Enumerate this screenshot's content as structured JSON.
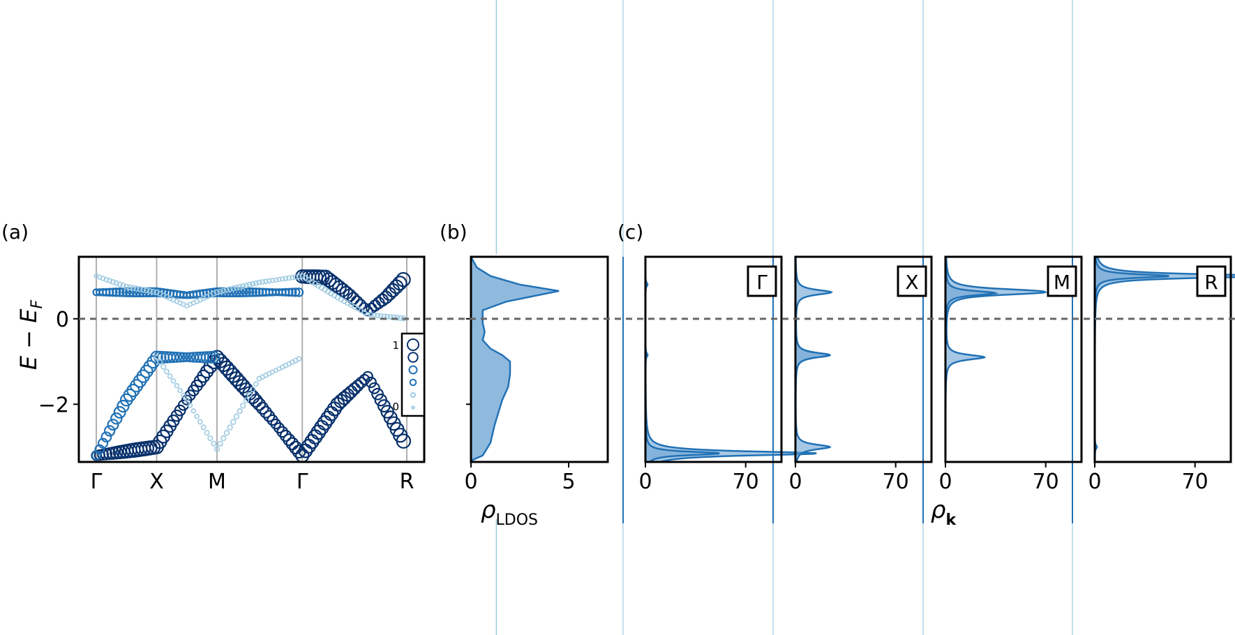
{
  "colors": {
    "dark": "#08306b",
    "mid": "#2171b5",
    "light": "#9ecae1",
    "fill": "#6aa3d3",
    "ef_line": "#666666",
    "kline": "#b0b0b0"
  },
  "panel_labels": {
    "a": "(a)",
    "b": "(b)",
    "c": "(c)"
  },
  "chart_data": [
    {
      "type": "scatter",
      "panel": "(a)",
      "ylabel_main": "E − E",
      "ylabel_sub": "F",
      "ylim": [
        -3.35,
        1.45
      ],
      "yticks": [
        0,
        -2
      ],
      "ytick_labels": [
        "0",
        "−2"
      ],
      "kpoints": [
        {
          "label": "Γ",
          "k": 0.0
        },
        {
          "label": "X",
          "k": 1.0
        },
        {
          "label": "M",
          "k": 2.0
        },
        {
          "label": "Γ",
          "k": 3.414
        },
        {
          "label": "R",
          "k": 5.146
        }
      ],
      "fermi_level": 0,
      "colorbar_labels": [
        "1",
        "0"
      ],
      "bands": [
        {
          "name": "upper-dark",
          "weight": 1.0,
          "points": [
            [
              3.414,
              0.99
            ],
            [
              3.8,
              0.97
            ],
            [
              4.2,
              0.55
            ],
            [
              4.5,
              0.18
            ],
            [
              4.8,
              0.5
            ],
            [
              5.146,
              1.0
            ]
          ]
        },
        {
          "name": "upper-flat",
          "weight": 0.55,
          "points": [
            [
              0.0,
              0.62
            ],
            [
              1.0,
              0.62
            ],
            [
              1.5,
              0.55
            ],
            [
              2.0,
              0.62
            ],
            [
              2.7,
              0.62
            ],
            [
              3.414,
              0.62
            ]
          ]
        },
        {
          "name": "upper-light",
          "weight": 0.2,
          "points": [
            [
              0.0,
              1.0
            ],
            [
              0.5,
              0.75
            ],
            [
              1.0,
              0.62
            ],
            [
              1.5,
              0.3
            ],
            [
              2.0,
              0.62
            ],
            [
              2.7,
              0.85
            ],
            [
              3.414,
              1.0
            ],
            [
              4.0,
              0.5
            ],
            [
              4.5,
              0.1
            ],
            [
              5.146,
              0.0
            ]
          ]
        },
        {
          "name": "lower-dark-1",
          "weight": 1.0,
          "points": [
            [
              0.0,
              -3.2
            ],
            [
              0.5,
              -3.1
            ],
            [
              1.0,
              -3.0
            ],
            [
              1.5,
              -1.9
            ],
            [
              2.0,
              -0.9
            ],
            [
              2.7,
              -2.0
            ],
            [
              3.414,
              -3.2
            ],
            [
              4.0,
              -2.0
            ],
            [
              4.5,
              -1.35
            ],
            [
              5.146,
              -3.0
            ]
          ]
        },
        {
          "name": "lower-dark-2",
          "weight": 0.85,
          "points": [
            [
              0.0,
              -3.2
            ],
            [
              0.5,
              -1.9
            ],
            [
              1.0,
              -0.9
            ],
            [
              1.5,
              -0.9
            ],
            [
              2.0,
              -0.9
            ]
          ]
        },
        {
          "name": "lower-light",
          "weight": 0.2,
          "points": [
            [
              1.0,
              -0.9
            ],
            [
              1.5,
              -1.9
            ],
            [
              2.0,
              -3.05
            ],
            [
              2.7,
              -1.4
            ],
            [
              3.414,
              -0.9
            ]
          ]
        }
      ]
    },
    {
      "type": "area",
      "panel": "(b)",
      "xlabel_main": "ρ",
      "xlabel_sub": "LDOS",
      "xlim": [
        0,
        7
      ],
      "xticks": [
        0,
        5
      ],
      "series": [
        {
          "name": "",
          "points": [
            [
              0,
              -3.35
            ],
            [
              0.1,
              -3.3
            ],
            [
              0.6,
              -3.2
            ],
            [
              1.0,
              -2.9
            ],
            [
              1.2,
              -2.5
            ],
            [
              1.4,
              -2.2
            ],
            [
              1.6,
              -1.9
            ],
            [
              1.9,
              -1.6
            ],
            [
              2.0,
              -1.3
            ],
            [
              2.0,
              -1.0
            ],
            [
              1.6,
              -0.85
            ],
            [
              1.0,
              -0.7
            ],
            [
              0.6,
              -0.5
            ],
            [
              0.7,
              -0.3
            ],
            [
              0.6,
              -0.1
            ],
            [
              0.6,
              0.2
            ],
            [
              1.8,
              0.4
            ],
            [
              4.5,
              0.65
            ],
            [
              2.5,
              0.8
            ],
            [
              1.0,
              1.0
            ],
            [
              0.3,
              1.2
            ],
            [
              0,
              1.45
            ]
          ]
        }
      ],
      "outside_spike": {
        "x": 1.3,
        "y_top": 8.5,
        "y_bottom": -5.9
      }
    },
    {
      "type": "area",
      "panel": "(c)",
      "xlabel_main": "ρ",
      "xlabel_sub": "k",
      "xlim": [
        0,
        95
      ],
      "xticks": [
        0,
        70
      ],
      "subpanels": [
        {
          "label": "Γ",
          "peaks": [
            {
              "e": -3.15,
              "h": 68,
              "w": 0.07
            },
            {
              "e": -3.15,
              "h": 52,
              "w": 0.05
            },
            {
              "e": 0.8,
              "h": 1.5,
              "w": 0.05
            },
            {
              "e": -0.85,
              "h": 1.5,
              "w": 0.05
            }
          ]
        },
        {
          "label": "X",
          "peaks": [
            {
              "e": 0.62,
              "h": 25,
              "w": 0.07
            },
            {
              "e": -0.85,
              "h": 24,
              "w": 0.07
            },
            {
              "e": -3.0,
              "h": 24,
              "w": 0.07
            }
          ]
        },
        {
          "label": "M",
          "peaks": [
            {
              "e": 0.65,
              "h": 45,
              "w": 0.07
            },
            {
              "e": 0.6,
              "h": 35,
              "w": 0.06
            },
            {
              "e": -0.9,
              "h": 27,
              "w": 0.07
            }
          ]
        },
        {
          "label": "R",
          "peaks": [
            {
              "e": 1.0,
              "h": 70,
              "w": 0.06
            },
            {
              "e": 1.0,
              "h": 52,
              "w": 0.05
            },
            {
              "e": -3.0,
              "h": 1.5,
              "w": 0.05
            }
          ]
        }
      ]
    }
  ]
}
